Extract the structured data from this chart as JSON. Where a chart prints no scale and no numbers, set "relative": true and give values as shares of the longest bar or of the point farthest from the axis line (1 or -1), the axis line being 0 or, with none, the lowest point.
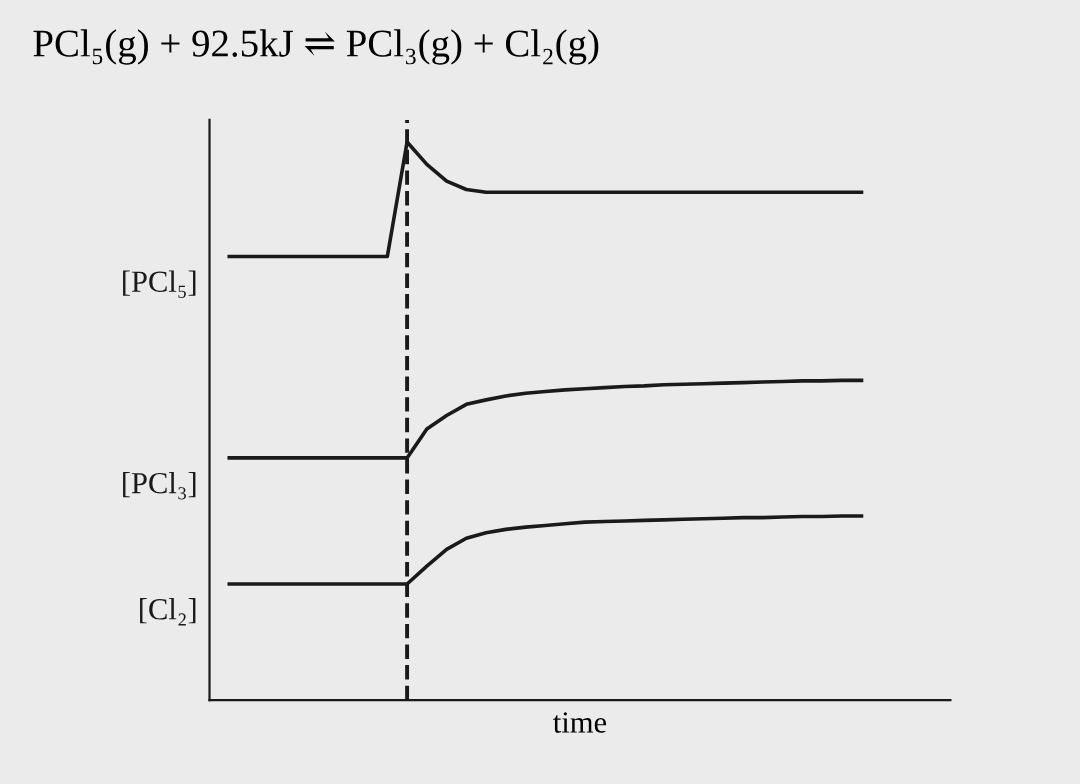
{
  "chart_data": {
    "type": "line",
    "title": "PCl₅(g) + 92.5kJ ⇌ PCl₃(g) + Cl₂(g)",
    "xlabel": "time",
    "relative": true,
    "categories": [
      null,
      null,
      null,
      null,
      null,
      null,
      null,
      null,
      null,
      null,
      null,
      null,
      null,
      null,
      null,
      null,
      null,
      null,
      null,
      null,
      null,
      null,
      null,
      null,
      null,
      null,
      null,
      null,
      null,
      null,
      null,
      null,
      null
    ],
    "series": [
      {
        "name": "[PCl₅]",
        "color": "#1a1a1a",
        "values": [
          0.795,
          0.795,
          0.795,
          0.795,
          0.795,
          0.795,
          0.795,
          0.795,
          0.795,
          1.0,
          0.96,
          0.93,
          0.915,
          0.91,
          0.91,
          0.91,
          0.91,
          0.91,
          0.91,
          0.91,
          0.91,
          0.91,
          0.91,
          0.91,
          0.91,
          0.91,
          0.91,
          0.91,
          0.91,
          0.91,
          0.91,
          0.91,
          0.91
        ]
      },
      {
        "name": "[PCl₃]",
        "color": "#1a1a1a",
        "values": [
          0.434,
          0.434,
          0.434,
          0.434,
          0.434,
          0.434,
          0.434,
          0.434,
          0.434,
          0.434,
          0.486,
          0.51,
          0.53,
          0.538,
          0.545,
          0.55,
          0.553,
          0.556,
          0.558,
          0.56,
          0.562,
          0.563,
          0.565,
          0.566,
          0.567,
          0.568,
          0.569,
          0.57,
          0.571,
          0.572,
          0.572,
          0.573,
          0.573
        ]
      },
      {
        "name": "[Cl₂]",
        "color": "#1a1a1a",
        "values": [
          0.208,
          0.208,
          0.208,
          0.208,
          0.208,
          0.208,
          0.208,
          0.208,
          0.208,
          0.208,
          0.24,
          0.27,
          0.29,
          0.3,
          0.306,
          0.31,
          0.313,
          0.316,
          0.319,
          0.32,
          0.321,
          0.322,
          0.323,
          0.324,
          0.325,
          0.326,
          0.327,
          0.327,
          0.328,
          0.329,
          0.329,
          0.33,
          0.33
        ]
      }
    ],
    "legend": false,
    "marker": "none",
    "line_style": "solid"
  }
}
